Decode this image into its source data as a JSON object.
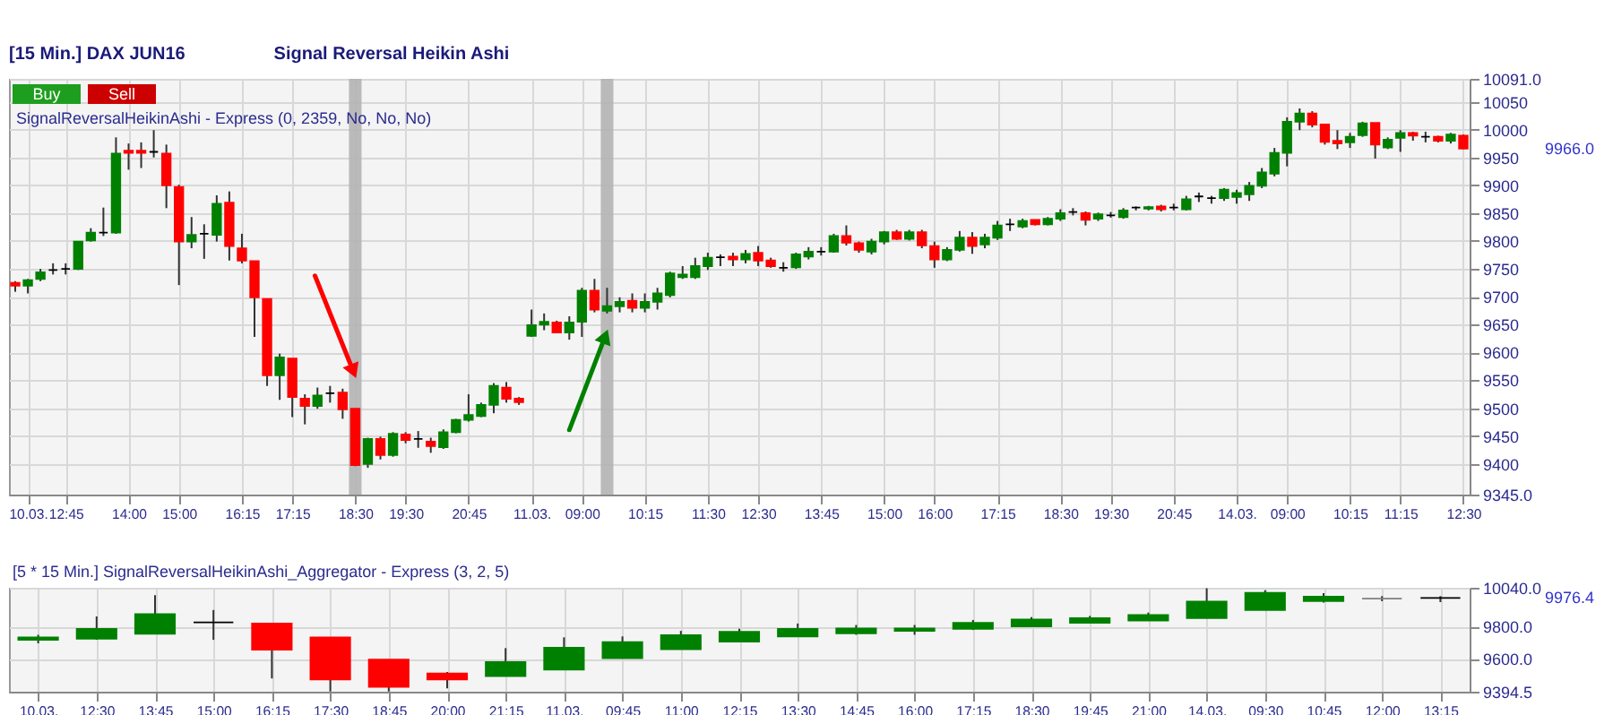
{
  "chart_data": [
    {
      "type": "candlestick",
      "title": "[15 Min.] DAX JUN16",
      "subtitle": "Signal Reversal Heikin Ashi",
      "categories": [
        null,
        "10.03.",
        null,
        null,
        "12:45",
        null,
        null,
        null,
        null,
        "14:00",
        null,
        null,
        null,
        "15:00",
        null,
        null,
        null,
        null,
        "16:15",
        null,
        null,
        null,
        "17:15",
        null,
        null,
        null,
        null,
        "18:30",
        null,
        null,
        null,
        "19:30",
        null,
        null,
        null,
        null,
        "20:45",
        null,
        null,
        null,
        null,
        "11.03.",
        null,
        null,
        null,
        "09:00",
        null,
        null,
        null,
        null,
        "10:15",
        null,
        null,
        null,
        null,
        "11:30",
        null,
        null,
        null,
        "12:30",
        null,
        null,
        null,
        null,
        "13:45",
        null,
        null,
        null,
        null,
        "15:00",
        null,
        null,
        null,
        "16:00",
        null,
        null,
        null,
        null,
        "17:15",
        null,
        null,
        null,
        null,
        "18:30",
        null,
        null,
        null,
        "19:30",
        null,
        null,
        null,
        null,
        "20:45",
        null,
        null,
        null,
        null,
        "14.03.",
        null,
        null,
        null,
        "09:00",
        null,
        null,
        null,
        null,
        "10:15",
        null,
        null,
        null,
        "11:15",
        null,
        null,
        null,
        null,
        "12:30"
      ],
      "ohlc": [
        [
          9725,
          9728,
          9709,
          9720
        ],
        [
          9720,
          9732,
          9706,
          9730
        ],
        [
          9732,
          9750,
          9728,
          9744
        ],
        [
          9748,
          9760,
          9740,
          9748
        ],
        [
          9750,
          9760,
          9740,
          9750
        ],
        [
          9750,
          9800,
          9748,
          9799
        ],
        [
          9801,
          9823,
          9799,
          9815
        ],
        [
          9815,
          9860,
          9809,
          9815
        ],
        [
          9815,
          9986,
          9813,
          9957
        ],
        [
          9962,
          9975,
          9928,
          9958
        ],
        [
          9962,
          9977,
          9931,
          9958
        ],
        [
          9960,
          9999,
          9950,
          9960
        ],
        [
          9957,
          9973,
          9859,
          9900
        ],
        [
          9897,
          9901,
          9721,
          9799
        ],
        [
          9799,
          9843,
          9787,
          9811
        ],
        [
          9813,
          9830,
          9768,
          9813
        ],
        [
          9811,
          9882,
          9799,
          9867
        ],
        [
          9869,
          9889,
          9765,
          9791
        ],
        [
          9787,
          9813,
          9760,
          9765
        ],
        [
          9764,
          9764,
          9628,
          9699
        ],
        [
          9696,
          9696,
          9540,
          9559
        ],
        [
          9559,
          9598,
          9515,
          9591
        ],
        [
          9589,
          9589,
          9484,
          9520
        ],
        [
          9517,
          9525,
          9471,
          9504
        ],
        [
          9504,
          9537,
          9499,
          9523
        ],
        [
          9527,
          9540,
          9510,
          9527
        ],
        [
          9528,
          9535,
          9481,
          9498
        ],
        [
          9499,
          9499,
          9396,
          9398
        ],
        [
          9400,
          9447,
          9393,
          9445
        ],
        [
          9445,
          9449,
          9408,
          9416
        ],
        [
          9416,
          9457,
          9413,
          9454
        ],
        [
          9453,
          9457,
          9437,
          9443
        ],
        [
          9445,
          9459,
          9429,
          9445
        ],
        [
          9440,
          9447,
          9420,
          9432
        ],
        [
          9430,
          9462,
          9427,
          9457
        ],
        [
          9457,
          9481,
          9455,
          9479
        ],
        [
          9479,
          9525,
          9476,
          9488
        ],
        [
          9486,
          9510,
          9484,
          9506
        ],
        [
          9506,
          9545,
          9491,
          9540
        ],
        [
          9537,
          9547,
          9510,
          9517
        ],
        [
          9517,
          9520,
          9506,
          9511
        ],
        [
          9630,
          9677,
          9628,
          9649
        ],
        [
          9650,
          9670,
          9640,
          9655
        ],
        [
          9654,
          9657,
          9635,
          9636
        ],
        [
          9636,
          9665,
          9623,
          9654
        ],
        [
          9655,
          9716,
          9628,
          9711
        ],
        [
          9711,
          9732,
          9672,
          9677
        ],
        [
          9675,
          9716,
          9670,
          9683
        ],
        [
          9683,
          9699,
          9672,
          9691
        ],
        [
          9693,
          9706,
          9672,
          9680
        ],
        [
          9680,
          9706,
          9672,
          9691
        ],
        [
          9691,
          9716,
          9677,
          9706
        ],
        [
          9703,
          9745,
          9699,
          9742
        ],
        [
          9735,
          9755,
          9732,
          9740
        ],
        [
          9735,
          9770,
          9732,
          9755
        ],
        [
          9755,
          9779,
          9748,
          9770
        ],
        [
          9771,
          9776,
          9755,
          9771
        ],
        [
          9772,
          9779,
          9755,
          9767
        ],
        [
          9767,
          9784,
          9760,
          9777
        ],
        [
          9779,
          9791,
          9755,
          9765
        ],
        [
          9765,
          9770,
          9752,
          9755
        ],
        [
          9752,
          9762,
          9745,
          9752
        ],
        [
          9753,
          9779,
          9750,
          9776
        ],
        [
          9772,
          9789,
          9767,
          9781
        ],
        [
          9781,
          9789,
          9774,
          9781
        ],
        [
          9781,
          9813,
          9779,
          9809
        ],
        [
          9809,
          9828,
          9792,
          9797
        ],
        [
          9796,
          9799,
          9779,
          9784
        ],
        [
          9781,
          9804,
          9776,
          9799
        ],
        [
          9799,
          9818,
          9794,
          9816
        ],
        [
          9816,
          9820,
          9802,
          9804
        ],
        [
          9804,
          9820,
          9801,
          9816
        ],
        [
          9816,
          9820,
          9787,
          9792
        ],
        [
          9791,
          9799,
          9752,
          9767
        ],
        [
          9767,
          9789,
          9764,
          9784
        ],
        [
          9784,
          9818,
          9781,
          9806
        ],
        [
          9806,
          9816,
          9777,
          9791
        ],
        [
          9794,
          9813,
          9787,
          9806
        ],
        [
          9806,
          9836,
          9802,
          9828
        ],
        [
          9830,
          9840,
          9818,
          9830
        ],
        [
          9826,
          9840,
          9823,
          9836
        ],
        [
          9838,
          9838,
          9828,
          9830
        ],
        [
          9830,
          9843,
          9828,
          9840
        ],
        [
          9840,
          9857,
          9836,
          9850
        ],
        [
          9852,
          9859,
          9846,
          9852
        ],
        [
          9850,
          9853,
          9828,
          9838
        ],
        [
          9840,
          9851,
          9836,
          9848
        ],
        [
          9846,
          9852,
          9842,
          9846
        ],
        [
          9843,
          9859,
          9840,
          9855
        ],
        [
          9860,
          9862,
          9855,
          9860
        ],
        [
          9858,
          9863,
          9855,
          9861
        ],
        [
          9862,
          9865,
          9853,
          9857
        ],
        [
          9860,
          9867,
          9855,
          9860
        ],
        [
          9857,
          9881,
          9855,
          9875
        ],
        [
          9880,
          9887,
          9870,
          9880
        ],
        [
          9877,
          9881,
          9867,
          9877
        ],
        [
          9877,
          9895,
          9872,
          9892
        ],
        [
          9879,
          9892,
          9867,
          9886
        ],
        [
          9884,
          9906,
          9872,
          9899
        ],
        [
          9899,
          9931,
          9895,
          9923
        ],
        [
          9921,
          9967,
          9916,
          9958
        ],
        [
          9958,
          10022,
          9934,
          10014
        ],
        [
          10014,
          10038,
          9999,
          10029
        ],
        [
          10029,
          10033,
          10004,
          10009
        ],
        [
          10009,
          10009,
          9973,
          9978
        ],
        [
          9980,
          9999,
          9965,
          9975
        ],
        [
          9977,
          9994,
          9967,
          9987
        ],
        [
          9990,
          10014,
          9987,
          10011
        ],
        [
          10012,
          10012,
          9948,
          9973
        ],
        [
          9968,
          9986,
          9965,
          9982
        ],
        [
          9985,
          9999,
          9960,
          9994
        ],
        [
          9994,
          9996,
          9980,
          9989
        ],
        [
          9987,
          9996,
          9977,
          9987
        ],
        [
          9987,
          9989,
          9977,
          9980
        ],
        [
          9980,
          9994,
          9975,
          9991
        ],
        [
          9989,
          9991,
          9965,
          9966
        ]
      ],
      "colors": [
        "#ff0000",
        "#008000",
        "#008000",
        "#000000",
        "#000000",
        "#008000",
        "#008000",
        "#000000",
        "#008000",
        "#ff0000",
        "#ff0000",
        "#000000",
        "#ff0000",
        "#ff0000",
        "#008000",
        "#000000",
        "#008000",
        "#ff0000",
        "#ff0000",
        "#ff0000",
        "#ff0000",
        "#008000",
        "#ff0000",
        "#ff0000",
        "#008000",
        "#000000",
        "#ff0000",
        "#ff0000",
        "#008000",
        "#ff0000",
        "#008000",
        "#ff0000",
        "#000000",
        "#ff0000",
        "#008000",
        "#008000",
        "#008000",
        "#008000",
        "#008000",
        "#ff0000",
        "#ff0000",
        "#008000",
        "#008000",
        "#ff0000",
        "#008000",
        "#008000",
        "#ff0000",
        "#008000",
        "#008000",
        "#ff0000",
        "#008000",
        "#008000",
        "#008000",
        "#008000",
        "#008000",
        "#008000",
        "#000000",
        "#ff0000",
        "#008000",
        "#ff0000",
        "#ff0000",
        "#000000",
        "#008000",
        "#008000",
        "#000000",
        "#008000",
        "#ff0000",
        "#ff0000",
        "#008000",
        "#008000",
        "#ff0000",
        "#008000",
        "#ff0000",
        "#ff0000",
        "#008000",
        "#008000",
        "#ff0000",
        "#008000",
        "#008000",
        "#000000",
        "#008000",
        "#ff0000",
        "#008000",
        "#008000",
        "#000000",
        "#ff0000",
        "#008000",
        "#000000",
        "#008000",
        "#000000",
        "#008000",
        "#ff0000",
        "#000000",
        "#008000",
        "#000000",
        "#000000",
        "#008000",
        "#008000",
        "#008000",
        "#008000",
        "#008000",
        "#008000",
        "#008000",
        "#ff0000",
        "#ff0000",
        "#ff0000",
        "#008000",
        "#008000",
        "#ff0000",
        "#008000",
        "#008000",
        "#ff0000",
        "#000000",
        "#ff0000",
        "#008000",
        "#ff0000"
      ],
      "ylim": [
        9345,
        10091
      ],
      "yticks": [
        {
          "value": 9345,
          "label": "9345.0"
        },
        9400,
        9450,
        9500,
        9550,
        9600,
        9650,
        9700,
        9750,
        9800,
        9850,
        9900,
        9950,
        10000,
        10050,
        {
          "value": 10091,
          "label": "10091.0"
        }
      ],
      "grid": true,
      "annotations": [
        "Buy",
        "Sell",
        "SignalReversalHeikinAshi - Express  (0, 2359, No, No, No)",
        "9966.0"
      ]
    },
    {
      "type": "candlestick",
      "categories": [
        "10.03.",
        "12:30",
        "13:45",
        "15:00",
        "16:15",
        "17:30",
        "18:45",
        "20:00",
        "21:15",
        "11.03.",
        "09:45",
        "11:00",
        "12:15",
        "13:30",
        "14:45",
        "16:00",
        "17:15",
        "18:30",
        "19:45",
        "21:00",
        "14.03.",
        "09:30",
        "10:45",
        "12:00",
        "13:15"
      ],
      "ohlc": [
        [
          9717,
          9748,
          9695,
          9732
        ],
        [
          9723,
          9862,
          9717,
          9785
        ],
        [
          9754,
          9994,
          9754,
          9877
        ],
        [
          9825,
          9902,
          9717,
          9825
        ],
        [
          9818,
          9818,
          9477,
          9655
        ],
        [
          9732,
          9732,
          9396,
          9471
        ],
        [
          9594,
          9594,
          9396,
          9425
        ],
        [
          9508,
          9517,
          9415,
          9471
        ],
        [
          9492,
          9665,
          9492,
          9578
        ],
        [
          9532,
          9732,
          9532,
          9668
        ],
        [
          9603,
          9738,
          9603,
          9702
        ],
        [
          9658,
          9772,
          9658,
          9745
        ],
        [
          9705,
          9785,
          9705,
          9766
        ],
        [
          9738,
          9818,
          9738,
          9785
        ],
        [
          9757,
          9809,
          9748,
          9788
        ],
        [
          9772,
          9809,
          9748,
          9788
        ],
        [
          9785,
          9840,
          9778,
          9822
        ],
        [
          9800,
          9858,
          9800,
          9843
        ],
        [
          9822,
          9865,
          9818,
          9852
        ],
        [
          9837,
          9886,
          9837,
          9871
        ],
        [
          9852,
          10037,
          9852,
          9954
        ],
        [
          9902,
          10025,
          9902,
          10009
        ],
        [
          9957,
          10006,
          9948,
          9985
        ],
        [
          9972,
          9988,
          9957,
          9972
        ],
        [
          9976.4,
          9988,
          9951,
          9976.4
        ]
      ],
      "colors": [
        "#008000",
        "#008000",
        "#008000",
        "#000000",
        "#ff0000",
        "#ff0000",
        "#ff0000",
        "#ff0000",
        "#008000",
        "#008000",
        "#008000",
        "#008000",
        "#008000",
        "#008000",
        "#008000",
        "#008000",
        "#008000",
        "#008000",
        "#008000",
        "#008000",
        "#008000",
        "#008000",
        "#008000",
        "#808080",
        "#000000"
      ],
      "ylim": [
        9394.5,
        10040
      ],
      "yticks": [
        {
          "value": 9394.5,
          "label": "9394.5"
        },
        {
          "value": 9600,
          "label": "9600.0"
        },
        {
          "value": 9800,
          "label": "9800.0"
        },
        {
          "value": 10040,
          "label": "10040.0"
        }
      ],
      "grid": true,
      "annotations": [
        "[5 * 15 Min.] SignalReversalHeikinAshi_Aggregator - Express  (3, 2, 5)",
        "9976.4"
      ]
    }
  ]
}
